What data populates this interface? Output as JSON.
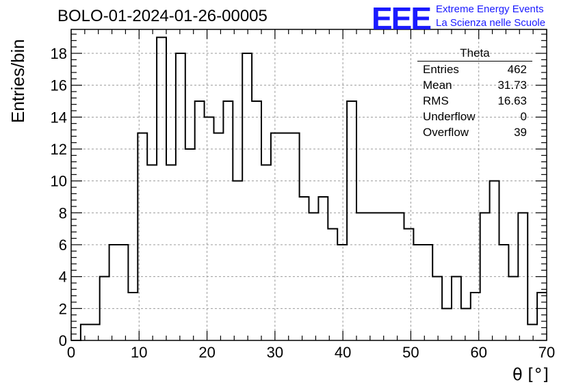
{
  "header": {
    "run_title": "BOLO-01-2024-01-26-00005",
    "logo": "EEE",
    "logo_line1": "Extreme Energy Events",
    "logo_line2": "La Scienza nelle Scuole",
    "logo_color": "#1a1aff"
  },
  "stats_box": {
    "title": "Theta",
    "rows": [
      {
        "key": "Entries",
        "value": "462"
      },
      {
        "key": "Mean",
        "value": "31.73"
      },
      {
        "key": "RMS",
        "value": "16.63"
      },
      {
        "key": "Underflow",
        "value": "0"
      },
      {
        "key": "Overflow",
        "value": "39"
      }
    ]
  },
  "chart_data": {
    "type": "histogram",
    "xlabel": "θ [°]",
    "ylabel": "Entries/bin",
    "xlim": [
      0,
      70
    ],
    "ylim": [
      0,
      19.5
    ],
    "x_ticks": [
      0,
      10,
      20,
      30,
      40,
      50,
      60,
      70
    ],
    "y_ticks": [
      0,
      2,
      4,
      6,
      8,
      10,
      12,
      14,
      16,
      18
    ],
    "grid": true,
    "bin_width": 1.4,
    "bin_start": 0,
    "counts": [
      0,
      1,
      1,
      4,
      6,
      6,
      3,
      13,
      11,
      19,
      11,
      18,
      12,
      15,
      14,
      13,
      15,
      10,
      18,
      15,
      11,
      13,
      13,
      13,
      9,
      8,
      9,
      7,
      6,
      15,
      8,
      8,
      8,
      8,
      8,
      7,
      6,
      6,
      4,
      2,
      4,
      2,
      3,
      8,
      10,
      6,
      4,
      8,
      1,
      3
    ],
    "line_color": "#000000"
  }
}
